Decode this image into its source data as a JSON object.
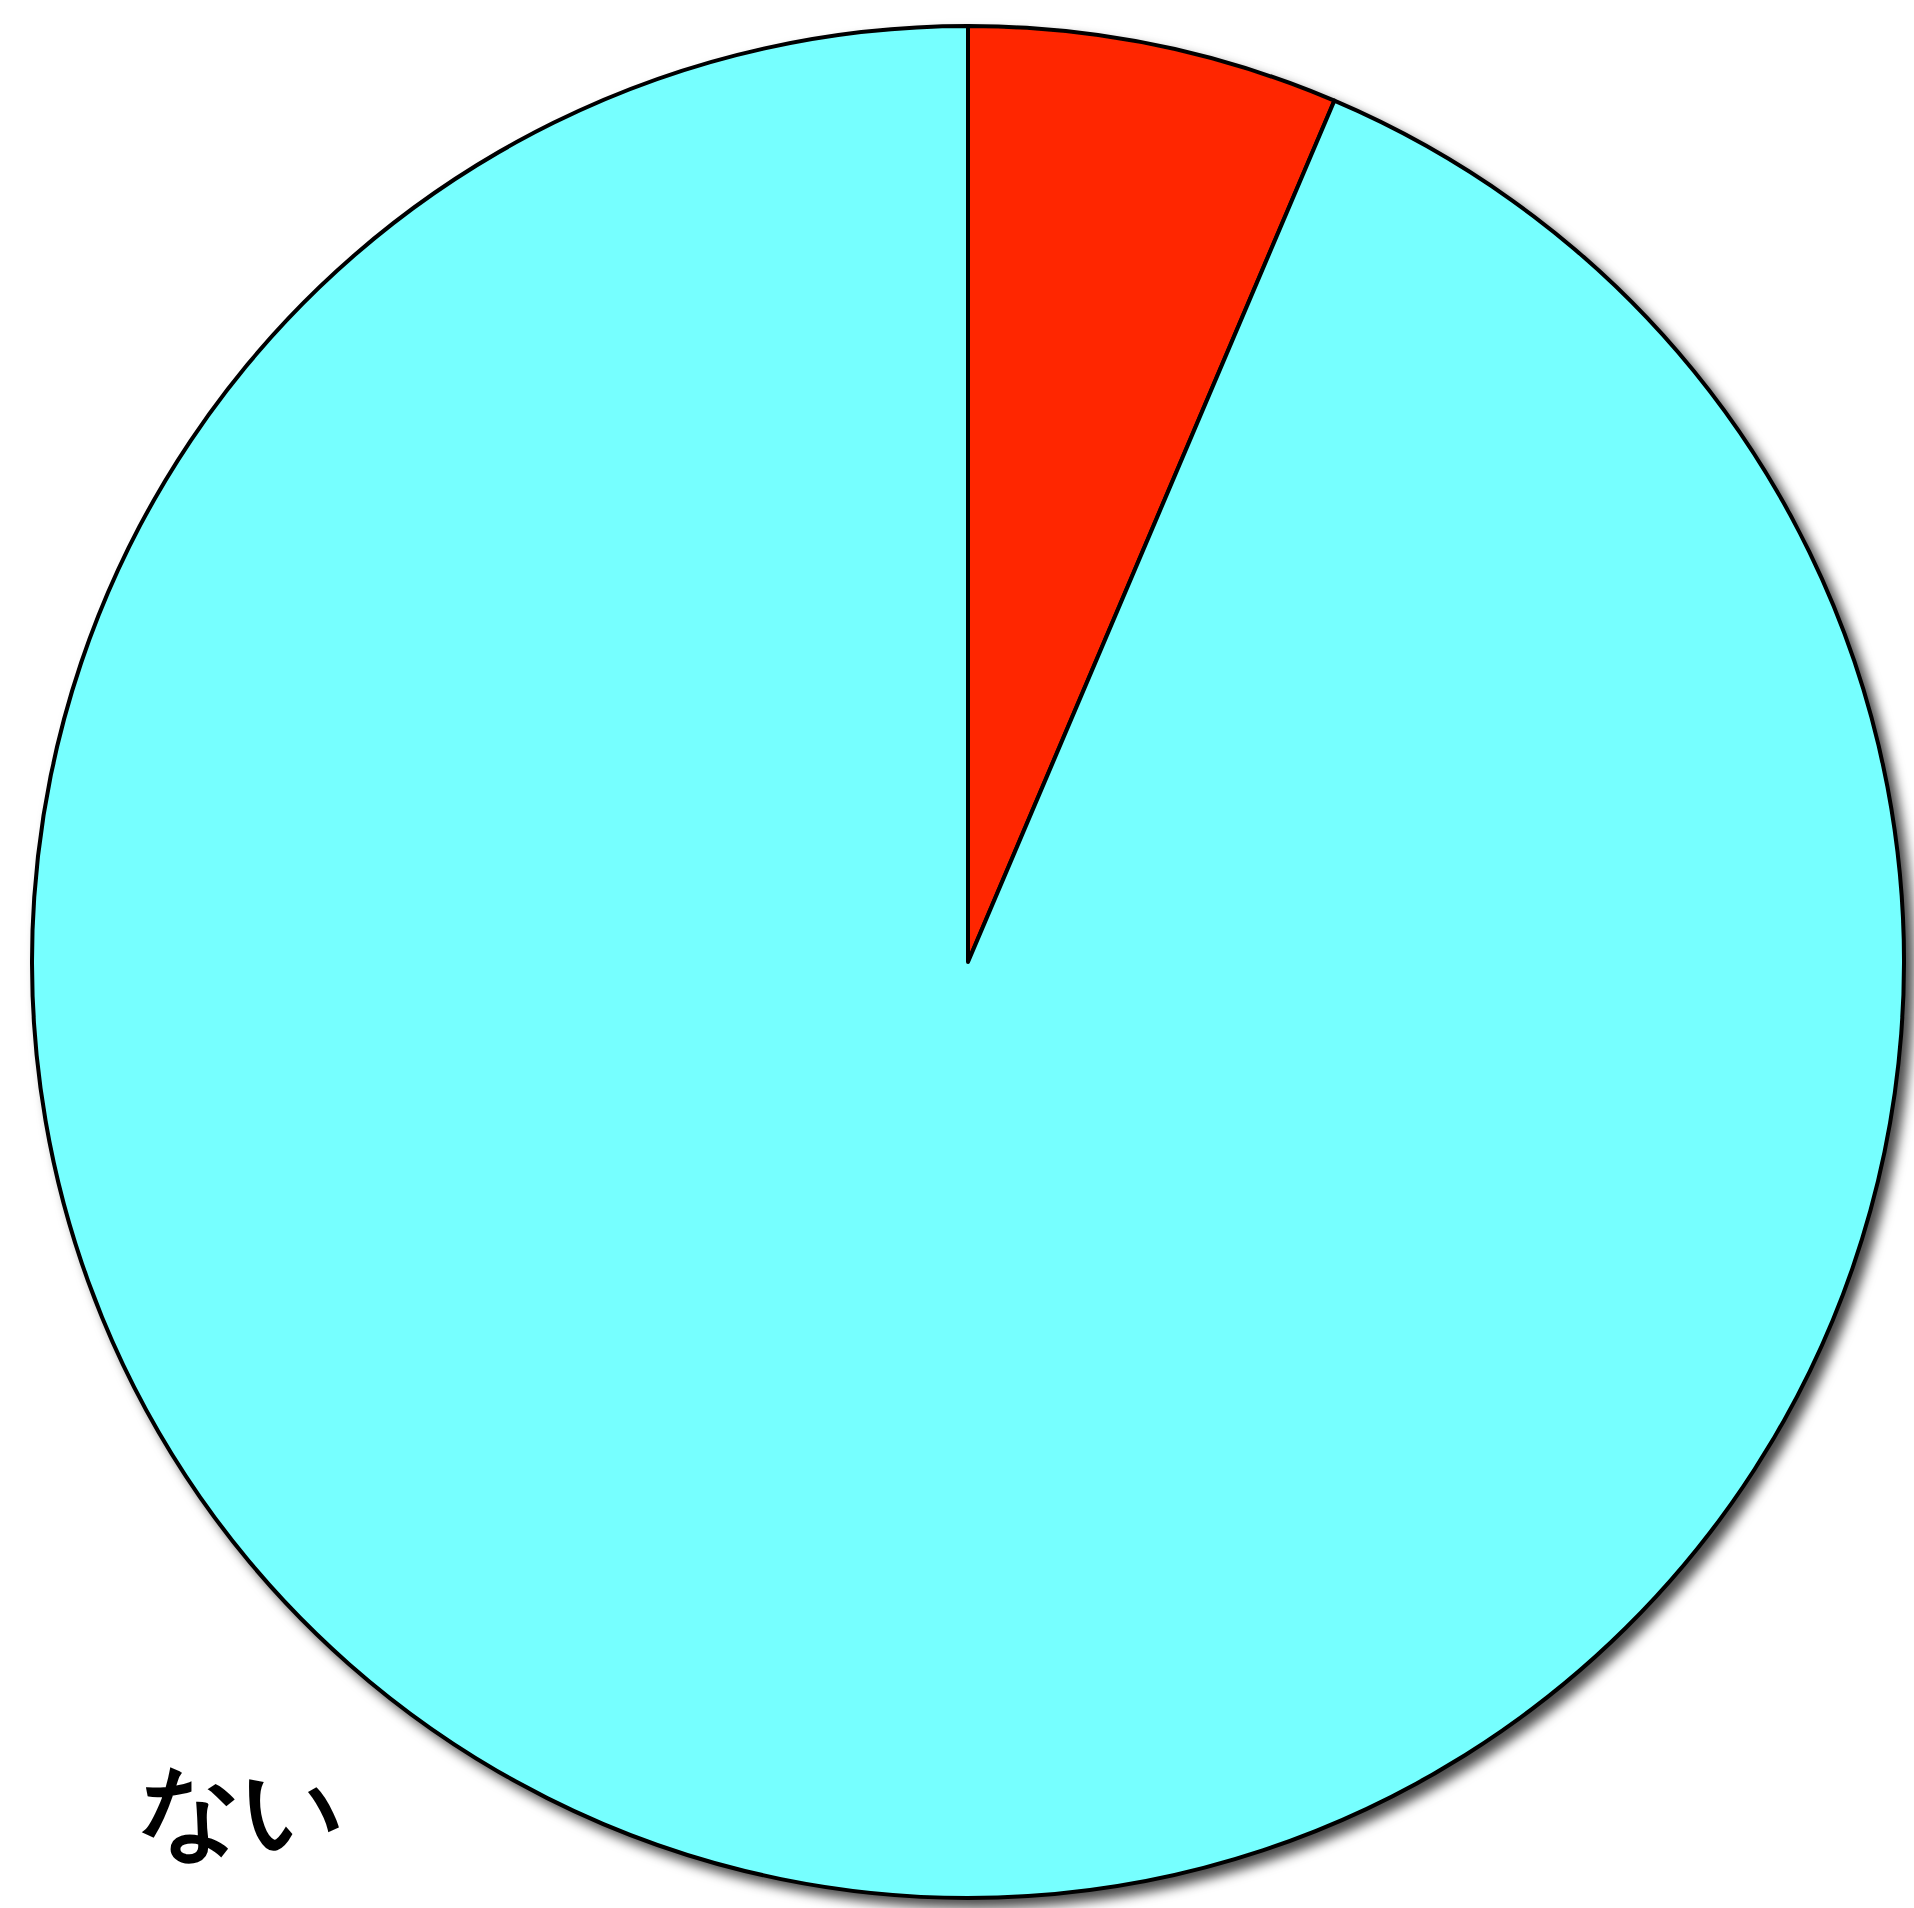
{
  "chart_data": {
    "type": "pie",
    "categories": [
      null,
      "ない"
    ],
    "values": [
      6.4,
      93.6
    ],
    "colors": [
      "#ff2600",
      "#76ffff"
    ]
  }
}
